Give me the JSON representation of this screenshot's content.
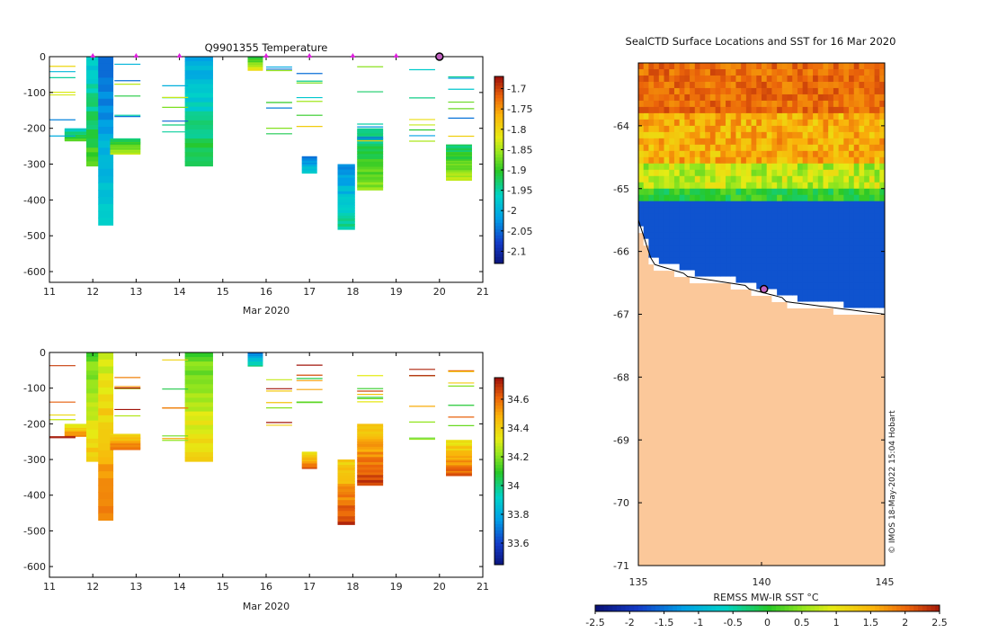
{
  "figure": {
    "footer": "© IMOS 18-May-2022 15:04 Hobart"
  },
  "chart_data": [
    {
      "id": "temperature",
      "type": "heatmap",
      "title": "Q9901355  Temperature",
      "xlabel": "Mar 2020",
      "ylabel": "",
      "xlim": [
        11,
        21
      ],
      "ylim": [
        -630,
        0
      ],
      "xticks": [
        "11",
        "12",
        "13",
        "14",
        "15",
        "16",
        "17",
        "18",
        "19",
        "20",
        "21"
      ],
      "yticks": [
        "0",
        "-100",
        "-200",
        "-300",
        "-400",
        "-500",
        "-600"
      ],
      "colorbar": {
        "range": [
          -2.13,
          -1.67
        ],
        "ticks": [
          "-1.7",
          "-1.75",
          "-1.8",
          "-1.85",
          "-1.9",
          "-1.95",
          "-2",
          "-2.05",
          "-2.1"
        ]
      },
      "surface_markers_day": [
        12,
        13,
        14,
        16,
        17,
        18,
        19
      ],
      "current_marker_day": 20,
      "profiles": [
        {
          "day": 11.7,
          "width": 0.7,
          "top": -200,
          "bottom": -235,
          "v": -1.92
        },
        {
          "day": 12.05,
          "width": 0.4,
          "top": 0,
          "bottom": -305,
          "v": -1.93
        },
        {
          "day": 12.3,
          "width": 0.35,
          "top": 0,
          "bottom": -470,
          "v": -2.0
        },
        {
          "day": 12.75,
          "width": 0.7,
          "top": -228,
          "bottom": -272,
          "v": -1.88
        },
        {
          "day": 14.45,
          "width": 0.65,
          "top": 0,
          "bottom": -305,
          "v": -1.95
        },
        {
          "day": 15.75,
          "width": 0.35,
          "top": 0,
          "bottom": -38,
          "v": -1.86
        },
        {
          "day": 17.0,
          "width": 0.35,
          "top": -278,
          "bottom": -325,
          "v": -2.0
        },
        {
          "day": 17.85,
          "width": 0.4,
          "top": -300,
          "bottom": -482,
          "v": -1.98
        },
        {
          "day": 18.4,
          "width": 0.6,
          "top": -200,
          "bottom": -372,
          "v": -1.9
        },
        {
          "day": 20.45,
          "width": 0.6,
          "top": -245,
          "bottom": -345,
          "v": -1.88
        }
      ]
    },
    {
      "id": "salinity",
      "type": "heatmap",
      "title": "",
      "xlabel": "Mar 2020",
      "ylabel": "",
      "xlim": [
        11,
        21
      ],
      "ylim": [
        -630,
        0
      ],
      "xticks": [
        "11",
        "12",
        "13",
        "14",
        "15",
        "16",
        "17",
        "18",
        "19",
        "20",
        "21"
      ],
      "yticks": [
        "0",
        "-100",
        "-200",
        "-300",
        "-400",
        "-500",
        "-600"
      ],
      "colorbar": {
        "range": [
          33.45,
          34.75
        ],
        "ticks": [
          "34.6",
          "34.4",
          "34.2",
          "34",
          "33.8",
          "33.6"
        ]
      },
      "profiles": [
        {
          "day": 11.7,
          "width": 0.7,
          "top": -200,
          "bottom": -235,
          "v": 34.45
        },
        {
          "day": 12.05,
          "width": 0.4,
          "top": 0,
          "bottom": -305,
          "v": 34.3
        },
        {
          "day": 12.3,
          "width": 0.35,
          "top": 0,
          "bottom": -470,
          "v": 34.45
        },
        {
          "day": 12.75,
          "width": 0.7,
          "top": -228,
          "bottom": -272,
          "v": 34.5
        },
        {
          "day": 14.45,
          "width": 0.65,
          "top": 0,
          "bottom": -305,
          "v": 34.3
        },
        {
          "day": 15.75,
          "width": 0.35,
          "top": 0,
          "bottom": -38,
          "v": 33.85
        },
        {
          "day": 17.0,
          "width": 0.35,
          "top": -278,
          "bottom": -325,
          "v": 34.5
        },
        {
          "day": 17.85,
          "width": 0.4,
          "top": -300,
          "bottom": -482,
          "v": 34.55
        },
        {
          "day": 18.4,
          "width": 0.6,
          "top": -200,
          "bottom": -372,
          "v": 34.55
        },
        {
          "day": 20.45,
          "width": 0.6,
          "top": -245,
          "bottom": -345,
          "v": 34.5
        }
      ]
    },
    {
      "id": "sst_map",
      "type": "heatmap",
      "title": "SealCTD Surface Locations and SST for 16 Mar 2020",
      "xlabel": "",
      "ylabel": "",
      "xlim": [
        135,
        145
      ],
      "ylim": [
        -71,
        -63
      ],
      "xticks": [
        "135",
        "140",
        "145"
      ],
      "yticks": [
        "-64",
        "-65",
        "-66",
        "-67",
        "-68",
        "-69",
        "-70",
        "-71"
      ],
      "colorbar": {
        "label": "REMSS MW-IR SST °C",
        "range": [
          -2.5,
          2.5
        ],
        "ticks": [
          "-2.5",
          "-2",
          "-1.5",
          "-1",
          "-0.5",
          "0",
          "0.5",
          "1",
          "1.5",
          "2",
          "2.5"
        ]
      },
      "seal_location": {
        "lon": 140.1,
        "lat": -66.6
      }
    }
  ]
}
